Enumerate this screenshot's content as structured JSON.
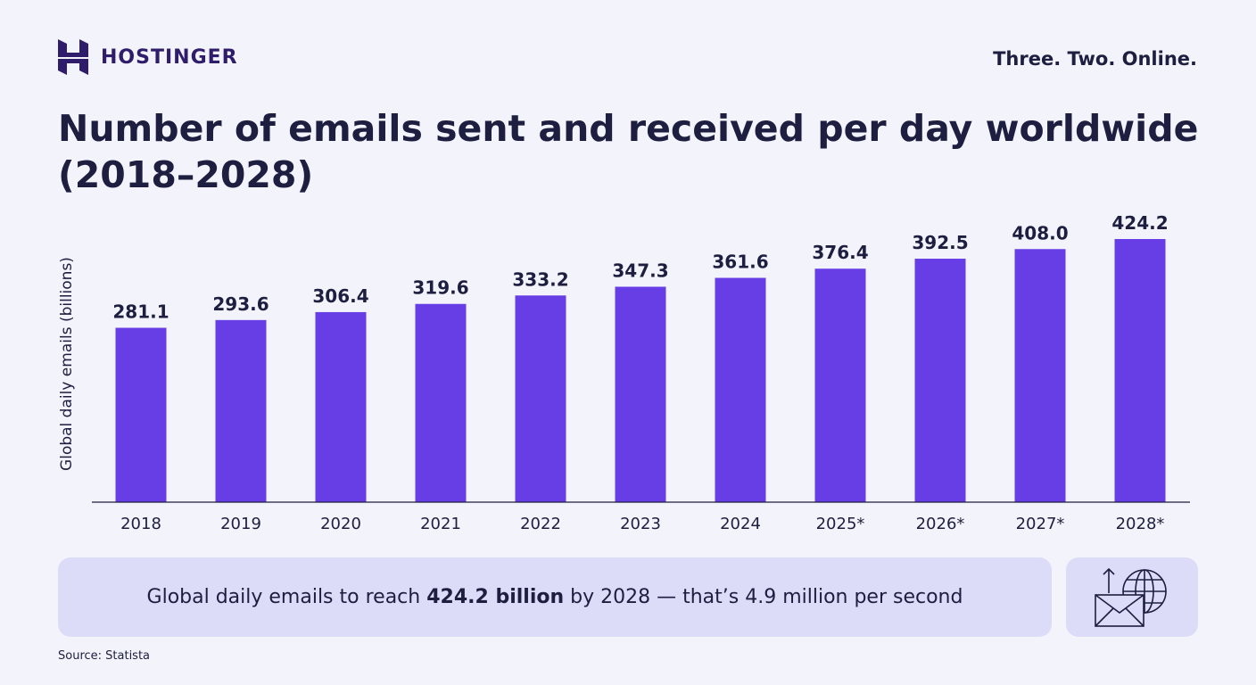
{
  "brand": {
    "name": "HOSTINGER",
    "tagline": "Three. Two. Online."
  },
  "colors": {
    "bar": "#673de6",
    "text": "#1d1e40",
    "background": "#f3f3fb",
    "card": "#dcdcf8"
  },
  "chart_data": {
    "type": "bar",
    "title": "Number of emails sent and received per day worldwide (2018–2028)",
    "xlabel": "",
    "ylabel": "Global daily emails (billions)",
    "categories": [
      "2018",
      "2019",
      "2020",
      "2021",
      "2022",
      "2023",
      "2024",
      "2025*",
      "2026*",
      "2027*",
      "2028*"
    ],
    "values": [
      281.1,
      293.6,
      306.4,
      319.6,
      333.2,
      347.3,
      361.6,
      376.4,
      392.5,
      408.0,
      424.2
    ],
    "data_labels": [
      "281.1",
      "293.6",
      "306.4",
      "319.6",
      "333.2",
      "347.3",
      "361.6",
      "376.4",
      "392.5",
      "408.0",
      "424.2"
    ],
    "ylim": [
      0,
      424.2
    ],
    "grid": false,
    "legend": "none"
  },
  "callout": {
    "prefix": "Global daily emails to reach ",
    "highlight": "424.2 billion",
    "suffix": " by 2028 — that’s 4.9 million per second",
    "icon": "email-globe-icon"
  },
  "source": "Source: Statista"
}
